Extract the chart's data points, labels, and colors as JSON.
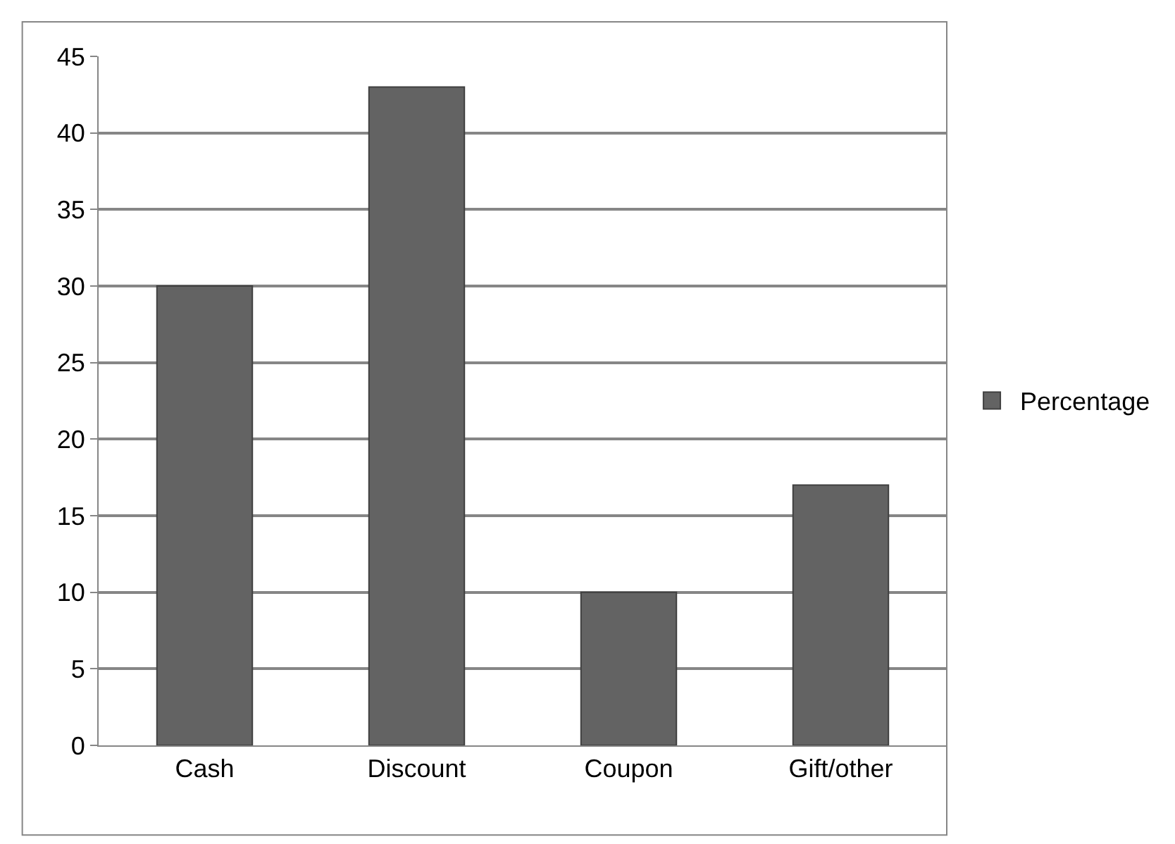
{
  "chart_data": {
    "type": "bar",
    "categories": [
      "Cash",
      "Discount",
      "Coupon",
      "Gift/other"
    ],
    "series": [
      {
        "name": "Percentage",
        "color": "#636363",
        "values": [
          30,
          43,
          10,
          17
        ]
      }
    ],
    "ylim": [
      0,
      45
    ],
    "yticks": [
      0,
      5,
      10,
      15,
      20,
      25,
      30,
      35,
      40,
      45
    ],
    "grid": "y",
    "legend": "right"
  }
}
